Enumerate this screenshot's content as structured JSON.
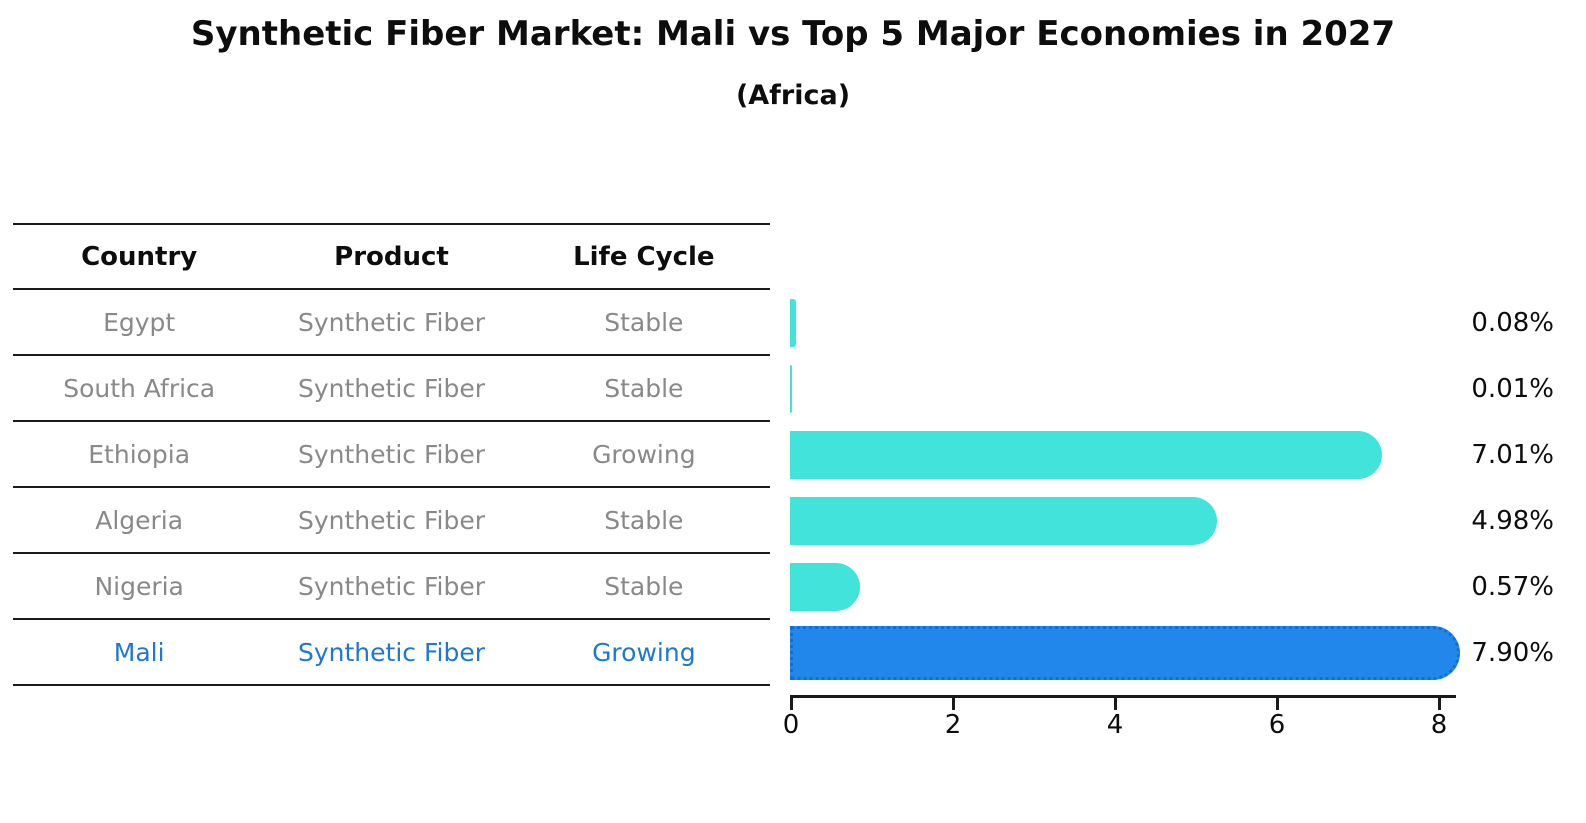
{
  "title": "Synthetic Fiber Market: Mali vs Top 5 Major Economies in 2027",
  "subtitle": "(Africa)",
  "table": {
    "headers": [
      "Country",
      "Product",
      "Life Cycle"
    ],
    "rows": [
      {
        "country": "Egypt",
        "product": "Synthetic Fiber",
        "life_cycle": "Stable"
      },
      {
        "country": "South Africa",
        "product": "Synthetic Fiber",
        "life_cycle": "Stable"
      },
      {
        "country": "Ethiopia",
        "product": "Synthetic Fiber",
        "life_cycle": "Growing"
      },
      {
        "country": "Algeria",
        "product": "Synthetic Fiber",
        "life_cycle": "Stable"
      },
      {
        "country": "Nigeria",
        "product": "Synthetic Fiber",
        "life_cycle": "Stable"
      },
      {
        "country": "Mali",
        "product": "Synthetic Fiber",
        "life_cycle": "Growing"
      }
    ]
  },
  "chart_data": {
    "type": "bar",
    "orientation": "horizontal",
    "title": "Synthetic Fiber Market: Mali vs Top 5 Major Economies in 2027",
    "subtitle": "(Africa)",
    "categories": [
      "Egypt",
      "South Africa",
      "Ethiopia",
      "Algeria",
      "Nigeria",
      "Mali"
    ],
    "values": [
      0.08,
      0.01,
      7.01,
      4.98,
      0.57,
      7.9
    ],
    "value_labels": [
      "0.08%",
      "0.01%",
      "7.01%",
      "4.98%",
      "0.57%",
      "7.90%"
    ],
    "unit": "%",
    "highlight_category": "Mali",
    "x_ticks": [
      "0",
      "2",
      "4",
      "6",
      "8"
    ],
    "xlim": [
      0,
      8.3
    ],
    "grid": false,
    "legend": false
  },
  "colors": {
    "bar_default": "#42e3da",
    "bar_highlight": "#2187ea",
    "bar_highlight_border": "#0e6fd9",
    "highlight_text": "#1e78d2",
    "row_text": "#898989",
    "heading_text": "#0d0d0d",
    "line": "#1a1a1a"
  }
}
